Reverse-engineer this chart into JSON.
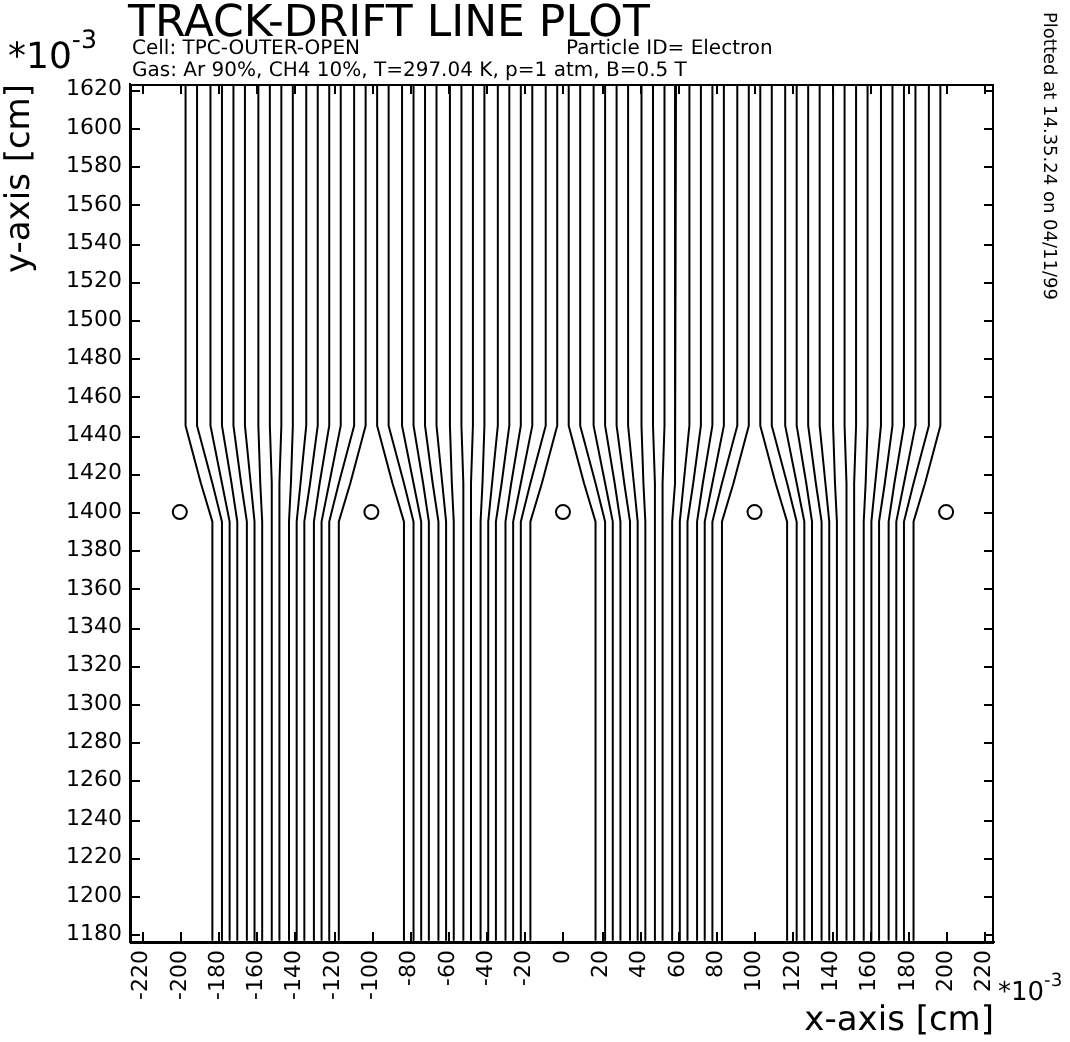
{
  "chart_data": {
    "type": "line",
    "title": "TRACK-DRIFT LINE PLOT",
    "subtitle": "Cell: TPC-OUTER-OPEN",
    "xlabel": "x-axis [cm]",
    "ylabel": "y-axis [cm]",
    "annotations": [
      "Particle ID= Electron",
      "Gas: Ar 90%, CH4 10%, T=297.04 K, p=1 atm, B=0.5 T",
      "*10$^{-3}$",
      "*10$^{-3}$",
      "Plotted at 14.35.24 on 04/11/99"
    ],
    "xlim": [
      -226,
      225
    ],
    "ylim": [
      1176,
      1623
    ],
    "xticks": [
      -220,
      -200,
      -180,
      -160,
      -140,
      -120,
      -100,
      -80,
      -60,
      -40,
      -20,
      0,
      20,
      40,
      60,
      80,
      100,
      120,
      140,
      160,
      180,
      200,
      220
    ],
    "yticks": [
      1180,
      1200,
      1220,
      1240,
      1260,
      1280,
      1300,
      1320,
      1340,
      1360,
      1380,
      1400,
      1420,
      1440,
      1460,
      1480,
      1500,
      1520,
      1540,
      1560,
      1580,
      1600,
      1620
    ],
    "legend": false,
    "marker": "none",
    "series": [
      {
        "color": "#000000",
        "x": [
          -197,
          -197,
          -189,
          -183,
          -183
        ],
        "values": [
          1622,
          1445,
          1415,
          1395,
          1177
        ]
      },
      {
        "color": "#000000",
        "x": [
          -191,
          -191,
          -183,
          -178,
          -178
        ],
        "values": [
          1622,
          1445,
          1415,
          1395,
          1177
        ]
      },
      {
        "color": "#000000",
        "x": [
          -184,
          -184,
          -178,
          -174,
          -174
        ],
        "values": [
          1622,
          1445,
          1415,
          1395,
          1177
        ]
      },
      {
        "color": "#000000",
        "x": [
          -178,
          -178,
          -173,
          -170,
          -170
        ],
        "values": [
          1622,
          1445,
          1415,
          1395,
          1177
        ]
      },
      {
        "color": "#000000",
        "x": [
          -172,
          -172,
          -168,
          -165,
          -165
        ],
        "values": [
          1622,
          1445,
          1415,
          1395,
          1177
        ]
      },
      {
        "color": "#000000",
        "x": [
          -166,
          -166,
          -163,
          -161,
          -161
        ],
        "values": [
          1622,
          1445,
          1415,
          1395,
          1177
        ]
      },
      {
        "color": "#000000",
        "x": [
          -159,
          -159,
          -158,
          -157,
          -157
        ],
        "values": [
          1622,
          1445,
          1415,
          1395,
          1177
        ]
      },
      {
        "color": "#000000",
        "x": [
          -153,
          -153,
          -152,
          -152,
          -152
        ],
        "values": [
          1622,
          1445,
          1415,
          1395,
          1177
        ]
      },
      {
        "color": "#000000",
        "x": [
          -147,
          -147,
          -148,
          -148,
          -148
        ],
        "values": [
          1622,
          1445,
          1415,
          1395,
          1177
        ]
      },
      {
        "color": "#000000",
        "x": [
          -141,
          -141,
          -142,
          -143,
          -143
        ],
        "values": [
          1622,
          1445,
          1415,
          1395,
          1177
        ]
      },
      {
        "color": "#000000",
        "x": [
          -134,
          -134,
          -137,
          -139,
          -139
        ],
        "values": [
          1622,
          1445,
          1415,
          1395,
          1177
        ]
      },
      {
        "color": "#000000",
        "x": [
          -128,
          -128,
          -132,
          -135,
          -135
        ],
        "values": [
          1622,
          1445,
          1415,
          1395,
          1177
        ]
      },
      {
        "color": "#000000",
        "x": [
          -122,
          -122,
          -127,
          -130,
          -130
        ],
        "values": [
          1622,
          1445,
          1415,
          1395,
          1177
        ]
      },
      {
        "color": "#000000",
        "x": [
          -116,
          -116,
          -122,
          -126,
          -126
        ],
        "values": [
          1622,
          1445,
          1415,
          1395,
          1177
        ]
      },
      {
        "color": "#000000",
        "x": [
          -109,
          -109,
          -117,
          -122,
          -122
        ],
        "values": [
          1622,
          1445,
          1415,
          1395,
          1177
        ]
      },
      {
        "color": "#000000",
        "x": [
          -103,
          -103,
          -111,
          -117,
          -117
        ],
        "values": [
          1622,
          1445,
          1415,
          1395,
          1177
        ]
      },
      {
        "color": "#000000",
        "x": [
          -97,
          -97,
          -89,
          -83,
          -83
        ],
        "values": [
          1622,
          1445,
          1415,
          1395,
          1177
        ]
      },
      {
        "color": "#000000",
        "x": [
          -91,
          -91,
          -83,
          -78,
          -78
        ],
        "values": [
          1622,
          1445,
          1415,
          1395,
          1177
        ]
      },
      {
        "color": "#000000",
        "x": [
          -84,
          -84,
          -78,
          -74,
          -74
        ],
        "values": [
          1622,
          1445,
          1415,
          1395,
          1177
        ]
      },
      {
        "color": "#000000",
        "x": [
          -78,
          -78,
          -73,
          -70,
          -70
        ],
        "values": [
          1622,
          1445,
          1415,
          1395,
          1177
        ]
      },
      {
        "color": "#000000",
        "x": [
          -72,
          -72,
          -68,
          -65,
          -65
        ],
        "values": [
          1622,
          1445,
          1415,
          1395,
          1177
        ]
      },
      {
        "color": "#000000",
        "x": [
          -66,
          -66,
          -63,
          -61,
          -61
        ],
        "values": [
          1622,
          1445,
          1415,
          1395,
          1177
        ]
      },
      {
        "color": "#000000",
        "x": [
          -59,
          -59,
          -58,
          -57,
          -57
        ],
        "values": [
          1622,
          1445,
          1415,
          1395,
          1177
        ]
      },
      {
        "color": "#000000",
        "x": [
          -53,
          -53,
          -52,
          -52,
          -52
        ],
        "values": [
          1622,
          1445,
          1415,
          1395,
          1177
        ]
      },
      {
        "color": "#000000",
        "x": [
          -47,
          -47,
          -48,
          -48,
          -48
        ],
        "values": [
          1622,
          1445,
          1415,
          1395,
          1177
        ]
      },
      {
        "color": "#000000",
        "x": [
          -41,
          -41,
          -42,
          -43,
          -43
        ],
        "values": [
          1622,
          1445,
          1415,
          1395,
          1177
        ]
      },
      {
        "color": "#000000",
        "x": [
          -34,
          -34,
          -37,
          -39,
          -39
        ],
        "values": [
          1622,
          1445,
          1415,
          1395,
          1177
        ]
      },
      {
        "color": "#000000",
        "x": [
          -28,
          -28,
          -32,
          -35,
          -35
        ],
        "values": [
          1622,
          1445,
          1415,
          1395,
          1177
        ]
      },
      {
        "color": "#000000",
        "x": [
          -22,
          -22,
          -27,
          -30,
          -30
        ],
        "values": [
          1622,
          1445,
          1415,
          1395,
          1177
        ]
      },
      {
        "color": "#000000",
        "x": [
          -16,
          -16,
          -22,
          -26,
          -26
        ],
        "values": [
          1622,
          1445,
          1415,
          1395,
          1177
        ]
      },
      {
        "color": "#000000",
        "x": [
          -9,
          -9,
          -17,
          -22,
          -22
        ],
        "values": [
          1622,
          1445,
          1415,
          1395,
          1177
        ]
      },
      {
        "color": "#000000",
        "x": [
          -3,
          -3,
          -11,
          -17,
          -17
        ],
        "values": [
          1622,
          1445,
          1415,
          1395,
          1177
        ]
      },
      {
        "color": "#000000",
        "x": [
          3,
          3,
          11,
          17,
          17
        ],
        "values": [
          1622,
          1445,
          1415,
          1395,
          1177
        ]
      },
      {
        "color": "#000000",
        "x": [
          9,
          9,
          17,
          22,
          22
        ],
        "values": [
          1622,
          1445,
          1415,
          1395,
          1177
        ]
      },
      {
        "color": "#000000",
        "x": [
          16,
          16,
          22,
          26,
          26
        ],
        "values": [
          1622,
          1445,
          1415,
          1395,
          1177
        ]
      },
      {
        "color": "#000000",
        "x": [
          22,
          22,
          27,
          30,
          30
        ],
        "values": [
          1622,
          1445,
          1415,
          1395,
          1177
        ]
      },
      {
        "color": "#000000",
        "x": [
          28,
          28,
          32,
          35,
          35
        ],
        "values": [
          1622,
          1445,
          1415,
          1395,
          1177
        ]
      },
      {
        "color": "#000000",
        "x": [
          34,
          34,
          37,
          39,
          39
        ],
        "values": [
          1622,
          1445,
          1415,
          1395,
          1177
        ]
      },
      {
        "color": "#000000",
        "x": [
          41,
          41,
          42,
          43,
          43
        ],
        "values": [
          1622,
          1445,
          1415,
          1395,
          1177
        ]
      },
      {
        "color": "#000000",
        "x": [
          47,
          47,
          48,
          48,
          48
        ],
        "values": [
          1622,
          1445,
          1415,
          1395,
          1177
        ]
      },
      {
        "color": "#000000",
        "x": [
          53,
          53,
          52,
          52,
          52
        ],
        "values": [
          1622,
          1445,
          1415,
          1395,
          1177
        ]
      },
      {
        "color": "#000000",
        "x": [
          59,
          59,
          58,
          57,
          57
        ],
        "values": [
          1622,
          1445,
          1415,
          1395,
          1177
        ]
      },
      {
        "color": "#000000",
        "x": [
          66,
          66,
          63,
          61,
          61
        ],
        "values": [
          1622,
          1445,
          1415,
          1395,
          1177
        ]
      },
      {
        "color": "#000000",
        "x": [
          72,
          72,
          68,
          65,
          65
        ],
        "values": [
          1622,
          1445,
          1415,
          1395,
          1177
        ]
      },
      {
        "color": "#000000",
        "x": [
          78,
          78,
          73,
          70,
          70
        ],
        "values": [
          1622,
          1445,
          1415,
          1395,
          1177
        ]
      },
      {
        "color": "#000000",
        "x": [
          84,
          84,
          78,
          74,
          74
        ],
        "values": [
          1622,
          1445,
          1415,
          1395,
          1177
        ]
      },
      {
        "color": "#000000",
        "x": [
          91,
          91,
          83,
          78,
          78
        ],
        "values": [
          1622,
          1445,
          1415,
          1395,
          1177
        ]
      },
      {
        "color": "#000000",
        "x": [
          97,
          97,
          89,
          83,
          83
        ],
        "values": [
          1622,
          1445,
          1415,
          1395,
          1177
        ]
      },
      {
        "color": "#000000",
        "x": [
          103,
          103,
          111,
          117,
          117
        ],
        "values": [
          1622,
          1445,
          1415,
          1395,
          1177
        ]
      },
      {
        "color": "#000000",
        "x": [
          109,
          109,
          117,
          122,
          122
        ],
        "values": [
          1622,
          1445,
          1415,
          1395,
          1177
        ]
      },
      {
        "color": "#000000",
        "x": [
          116,
          116,
          122,
          126,
          126
        ],
        "values": [
          1622,
          1445,
          1415,
          1395,
          1177
        ]
      },
      {
        "color": "#000000",
        "x": [
          122,
          122,
          127,
          130,
          130
        ],
        "values": [
          1622,
          1445,
          1415,
          1395,
          1177
        ]
      },
      {
        "color": "#000000",
        "x": [
          128,
          128,
          132,
          135,
          135
        ],
        "values": [
          1622,
          1445,
          1415,
          1395,
          1177
        ]
      },
      {
        "color": "#000000",
        "x": [
          134,
          134,
          137,
          139,
          139
        ],
        "values": [
          1622,
          1445,
          1415,
          1395,
          1177
        ]
      },
      {
        "color": "#000000",
        "x": [
          141,
          141,
          142,
          143,
          143
        ],
        "values": [
          1622,
          1445,
          1415,
          1395,
          1177
        ]
      },
      {
        "color": "#000000",
        "x": [
          147,
          147,
          148,
          148,
          148
        ],
        "values": [
          1622,
          1445,
          1415,
          1395,
          1177
        ]
      },
      {
        "color": "#000000",
        "x": [
          153,
          153,
          152,
          152,
          152
        ],
        "values": [
          1622,
          1445,
          1415,
          1395,
          1177
        ]
      },
      {
        "color": "#000000",
        "x": [
          159,
          159,
          158,
          157,
          157
        ],
        "values": [
          1622,
          1445,
          1415,
          1395,
          1177
        ]
      },
      {
        "color": "#000000",
        "x": [
          166,
          166,
          163,
          161,
          161
        ],
        "values": [
          1622,
          1445,
          1415,
          1395,
          1177
        ]
      },
      {
        "color": "#000000",
        "x": [
          172,
          172,
          168,
          165,
          165
        ],
        "values": [
          1622,
          1445,
          1415,
          1395,
          1177
        ]
      },
      {
        "color": "#000000",
        "x": [
          178,
          178,
          173,
          170,
          170
        ],
        "values": [
          1622,
          1445,
          1415,
          1395,
          1177
        ]
      },
      {
        "color": "#000000",
        "x": [
          184,
          184,
          178,
          174,
          174
        ],
        "values": [
          1622,
          1445,
          1415,
          1395,
          1177
        ]
      },
      {
        "color": "#000000",
        "x": [
          191,
          191,
          183,
          178,
          178
        ],
        "values": [
          1622,
          1445,
          1415,
          1395,
          1177
        ]
      },
      {
        "color": "#000000",
        "x": [
          197,
          197,
          189,
          183,
          183
        ],
        "values": [
          1622,
          1445,
          1415,
          1395,
          1177
        ]
      },
      {
        "type": "scatter",
        "marker": "circle",
        "color": "#000000",
        "x": [
          -200,
          -100,
          0,
          100,
          200
        ],
        "values": [
          1400,
          1400,
          1400,
          1400,
          1400
        ]
      }
    ]
  }
}
